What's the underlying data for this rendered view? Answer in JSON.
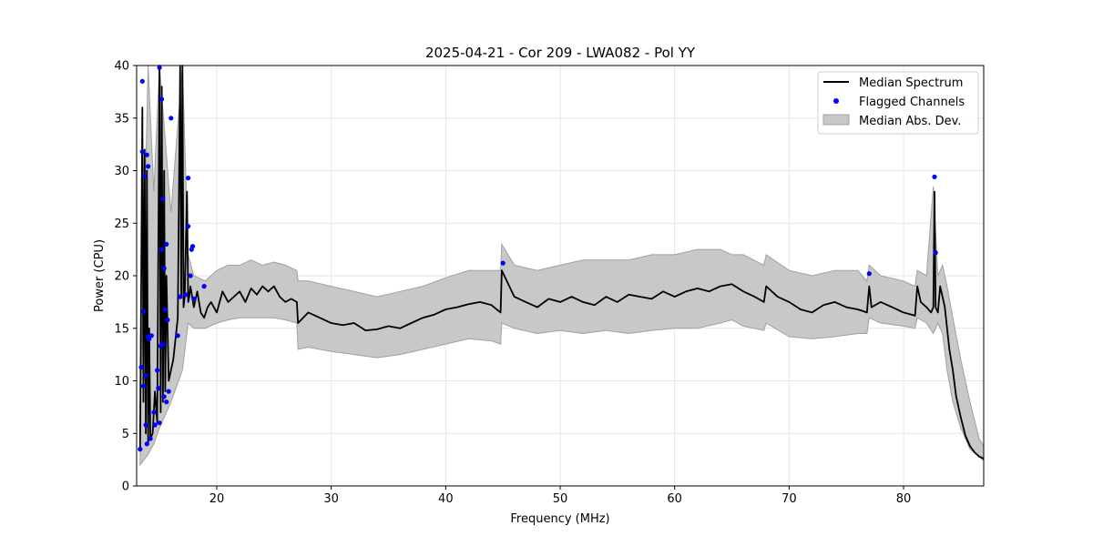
{
  "chart_data": {
    "type": "line",
    "title": "2025-04-21 - Cor 209 - LWA082 - Pol YY",
    "xlabel": "Frequency (MHz)",
    "ylabel": "Power (CPU)",
    "xlim": [
      13,
      87
    ],
    "ylim": [
      0,
      40
    ],
    "xticks": [
      20,
      30,
      40,
      50,
      60,
      70,
      80
    ],
    "yticks": [
      0,
      5,
      10,
      15,
      20,
      25,
      30,
      35,
      40
    ],
    "grid": true,
    "legend_position": "top-right",
    "legend": [
      "Median Spectrum",
      "Flagged Channels",
      "Median Abs. Dev."
    ],
    "colors": {
      "median": "#000000",
      "flagged": "#0000ff",
      "mad_fill": "#c8c8c8",
      "mad_edge": "#a0a0a0"
    },
    "series": [
      {
        "name": "Median Spectrum",
        "kind": "line",
        "x": [
          13.3,
          13.5,
          13.6,
          13.7,
          13.8,
          13.9,
          14.0,
          14.1,
          14.2,
          14.4,
          14.6,
          14.8,
          15.0,
          15.1,
          15.2,
          15.3,
          15.4,
          15.5,
          15.6,
          15.8,
          16.0,
          16.2,
          16.4,
          16.6,
          16.8,
          16.9,
          17.0,
          17.1,
          17.2,
          17.4,
          17.5,
          17.6,
          17.7,
          18.0,
          18.3,
          18.6,
          18.9,
          19.2,
          19.5,
          20.0,
          20.5,
          21.0,
          21.5,
          22.0,
          22.5,
          23.0,
          23.5,
          24.0,
          24.5,
          25.0,
          25.5,
          26.0,
          26.5,
          27.0,
          27.1,
          28.0,
          29.0,
          30.0,
          31.0,
          32.0,
          33.0,
          34.0,
          35.0,
          36.0,
          37.0,
          38.0,
          39.0,
          40.0,
          41.0,
          42.0,
          43.0,
          44.0,
          44.8,
          44.9,
          46.0,
          47.0,
          48.0,
          49.0,
          50.0,
          51.0,
          52.0,
          53.0,
          54.0,
          55.0,
          56.0,
          57.0,
          58.0,
          59.0,
          60.0,
          61.0,
          62.0,
          63.0,
          64.0,
          65.0,
          66.0,
          67.0,
          67.8,
          68.0,
          69.0,
          70.0,
          71.0,
          72.0,
          73.0,
          74.0,
          75.0,
          76.0,
          76.8,
          77.0,
          77.2,
          78.0,
          79.0,
          80.0,
          81.0,
          81.2,
          81.5,
          82.0,
          82.4,
          82.6,
          82.7,
          82.8,
          83.0,
          83.2,
          83.4,
          83.6,
          83.8,
          84.0,
          84.3,
          84.6,
          85.0,
          85.4,
          85.8,
          86.2,
          86.6,
          87.0
        ],
        "y": [
          3.5,
          36.0,
          8.0,
          32.0,
          5.0,
          30.0,
          4.0,
          15.0,
          4.5,
          5.0,
          9.0,
          6.0,
          40.0,
          7.0,
          38.0,
          8.0,
          30.0,
          9.0,
          20.0,
          10.0,
          11.0,
          12.0,
          14.0,
          16.0,
          40.0,
          18.0,
          40.0,
          17.0,
          18.0,
          28.0,
          17.5,
          18.0,
          19.0,
          17.0,
          18.5,
          16.5,
          16.0,
          17.0,
          17.5,
          16.5,
          18.5,
          17.5,
          18.0,
          18.5,
          17.5,
          18.8,
          18.2,
          19.0,
          18.5,
          19.0,
          18.0,
          17.5,
          17.8,
          17.5,
          15.5,
          16.5,
          16.0,
          15.5,
          15.3,
          15.5,
          14.8,
          14.9,
          15.2,
          15.0,
          15.5,
          16.0,
          16.3,
          16.8,
          17.0,
          17.3,
          17.5,
          17.2,
          16.5,
          20.5,
          18.0,
          17.5,
          17.0,
          17.8,
          17.5,
          18.0,
          17.5,
          17.2,
          18.0,
          17.5,
          18.2,
          18.0,
          17.8,
          18.5,
          18.0,
          18.5,
          18.8,
          18.5,
          19.0,
          19.2,
          18.5,
          18.0,
          17.5,
          19.0,
          18.0,
          17.5,
          16.8,
          16.5,
          17.2,
          17.5,
          17.0,
          16.8,
          16.5,
          19.0,
          17.0,
          17.5,
          17.0,
          16.5,
          16.2,
          19.0,
          17.5,
          17.0,
          16.5,
          17.0,
          28.0,
          17.0,
          16.5,
          19.0,
          18.0,
          17.0,
          15.0,
          13.0,
          11.0,
          8.5,
          6.5,
          4.8,
          3.8,
          3.2,
          2.8,
          2.6
        ]
      },
      {
        "name": "Median Abs. Dev.",
        "kind": "band",
        "x": [
          13.3,
          14.0,
          14.5,
          15.0,
          16.0,
          17.0,
          17.5,
          18.0,
          19.0,
          20.0,
          21.0,
          22.0,
          23.0,
          24.0,
          25.0,
          26.0,
          27.0,
          27.1,
          28.0,
          30.0,
          32.0,
          34.0,
          36.0,
          38.0,
          40.0,
          42.0,
          44.0,
          44.8,
          44.9,
          46.0,
          48.0,
          50.0,
          52.0,
          54.0,
          56.0,
          58.0,
          60.0,
          62.0,
          64.0,
          65.0,
          66.0,
          67.8,
          68.0,
          70.0,
          72.0,
          74.0,
          76.0,
          76.8,
          77.0,
          78.0,
          80.0,
          81.0,
          81.2,
          82.0,
          82.6,
          83.0,
          83.4,
          83.8,
          84.3,
          85.0,
          85.8,
          86.6,
          87.0
        ],
        "lower": [
          2.0,
          3.0,
          4.0,
          5.5,
          8.0,
          11.0,
          15.5,
          15.0,
          15.0,
          15.5,
          15.8,
          16.0,
          16.0,
          16.0,
          16.0,
          15.8,
          15.5,
          13.0,
          13.2,
          12.8,
          12.5,
          12.2,
          12.5,
          13.0,
          13.5,
          14.0,
          13.8,
          13.5,
          15.5,
          15.0,
          14.5,
          14.8,
          14.5,
          14.8,
          14.5,
          14.8,
          15.0,
          15.0,
          15.5,
          15.8,
          15.2,
          14.8,
          15.5,
          14.2,
          14.0,
          14.2,
          14.5,
          14.5,
          16.0,
          15.5,
          15.2,
          15.0,
          16.0,
          15.5,
          14.5,
          15.5,
          14.5,
          11.0,
          8.0,
          5.5,
          3.5,
          2.8,
          2.4
        ],
        "upper": [
          6.0,
          40.0,
          28.0,
          40.0,
          26.0,
          40.0,
          22.0,
          20.0,
          19.5,
          20.5,
          21.0,
          21.0,
          21.5,
          21.0,
          21.3,
          21.0,
          20.5,
          19.5,
          19.5,
          19.0,
          18.5,
          18.0,
          18.5,
          19.0,
          19.8,
          20.5,
          20.5,
          20.5,
          23.0,
          21.0,
          20.5,
          21.0,
          21.5,
          21.5,
          21.5,
          22.0,
          22.0,
          22.5,
          22.5,
          22.0,
          22.0,
          21.0,
          22.0,
          20.5,
          20.0,
          20.5,
          20.5,
          19.5,
          21.0,
          20.0,
          19.5,
          19.0,
          20.5,
          20.0,
          28.5,
          20.0,
          21.0,
          19.0,
          16.0,
          12.0,
          8.0,
          4.5,
          3.8
        ]
      },
      {
        "name": "Flagged Channels",
        "kind": "scatter",
        "x": [
          13.3,
          13.4,
          13.5,
          13.5,
          13.6,
          13.6,
          13.7,
          13.8,
          13.8,
          13.9,
          13.9,
          14.0,
          14.0,
          14.1,
          14.2,
          14.3,
          14.5,
          14.6,
          14.8,
          14.9,
          15.0,
          15.0,
          15.1,
          15.2,
          15.2,
          15.3,
          15.3,
          15.4,
          15.4,
          15.5,
          15.6,
          15.6,
          15.7,
          15.8,
          16.0,
          16.6,
          16.8,
          17.3,
          17.5,
          17.5,
          17.7,
          17.8,
          17.9,
          18.0,
          18.9,
          45.0,
          77.0,
          82.7,
          82.8
        ],
        "y": [
          3.5,
          11.3,
          31.8,
          38.5,
          16.6,
          9.5,
          29.5,
          5.8,
          10.5,
          31.5,
          4.0,
          30.4,
          14.2,
          14.0,
          4.5,
          14.3,
          7.0,
          5.8,
          11.0,
          9.3,
          39.8,
          6.0,
          13.3,
          36.8,
          22.5,
          27.3,
          13.5,
          20.7,
          8.5,
          16.8,
          23.0,
          8.0,
          15.8,
          9.0,
          35.0,
          14.3,
          18.0,
          18.2,
          29.3,
          24.7,
          20.0,
          22.5,
          22.8,
          17.8,
          19.0,
          21.2,
          20.2,
          29.4,
          22.2
        ]
      }
    ]
  }
}
